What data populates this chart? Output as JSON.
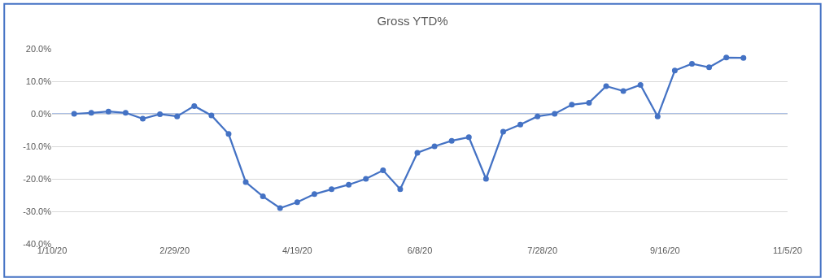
{
  "chart_data": {
    "type": "line",
    "title": "Gross YTD%",
    "x": [
      "2020-01-19",
      "2020-01-26",
      "2020-02-02",
      "2020-02-09",
      "2020-02-16",
      "2020-02-23",
      "2020-03-01",
      "2020-03-08",
      "2020-03-15",
      "2020-03-22",
      "2020-03-29",
      "2020-04-05",
      "2020-04-12",
      "2020-04-19",
      "2020-04-26",
      "2020-05-03",
      "2020-05-10",
      "2020-05-17",
      "2020-05-24",
      "2020-05-31",
      "2020-06-07",
      "2020-06-14",
      "2020-06-21",
      "2020-06-28",
      "2020-07-05",
      "2020-07-12",
      "2020-07-19",
      "2020-07-26",
      "2020-08-02",
      "2020-08-09",
      "2020-08-16",
      "2020-08-23",
      "2020-08-30",
      "2020-09-06",
      "2020-09-13",
      "2020-09-20",
      "2020-09-27",
      "2020-10-04",
      "2020-10-11",
      "2020-10-18"
    ],
    "series": [
      {
        "color": "#4472c4",
        "values": [
          0,
          0.3,
          0.7,
          0.3,
          -1.5,
          -0.1,
          -0.8,
          2.4,
          -0.5,
          -6.2,
          -21,
          -25.4,
          -29,
          -27.2,
          -24.7,
          -23.2,
          -21.8,
          -20,
          -17.4,
          -23.2,
          -12,
          -10,
          -8.3,
          -7.2,
          -20,
          -5.5,
          -3.3,
          -0.8,
          0,
          2.8,
          3.4,
          8.5,
          7,
          8.9,
          -0.8,
          13.3,
          15.4,
          14.3,
          17.3,
          17.2
        ]
      }
    ],
    "xlim": [
      "2020-01-10",
      "2020-11-05"
    ],
    "xticks": [
      {
        "value": "2020-01-10",
        "label": "1/10/20"
      },
      {
        "value": "2020-02-29",
        "label": "2/29/20"
      },
      {
        "value": "2020-04-19",
        "label": "4/19/20"
      },
      {
        "value": "2020-06-08",
        "label": "6/8/20"
      },
      {
        "value": "2020-07-28",
        "label": "7/28/20"
      },
      {
        "value": "2020-09-16",
        "label": "9/16/20"
      },
      {
        "value": "2020-11-05",
        "label": "11/5/20"
      }
    ],
    "ylim": [
      -40,
      20
    ],
    "yticks": [
      {
        "value": -40,
        "label": "-40.0%"
      },
      {
        "value": -30,
        "label": "-30.0%"
      },
      {
        "value": -20,
        "label": "-20.0%"
      },
      {
        "value": -10,
        "label": "-10.0%"
      },
      {
        "value": 0,
        "label": "0.0%"
      },
      {
        "value": 10,
        "label": "10.0%"
      },
      {
        "value": 20,
        "label": "20.0%"
      }
    ],
    "ref_lines": [
      {
        "axis": "y",
        "value": 0,
        "color": "#8eaadb"
      }
    ],
    "grid": "y",
    "marker": "circle",
    "line_style": "solid"
  }
}
